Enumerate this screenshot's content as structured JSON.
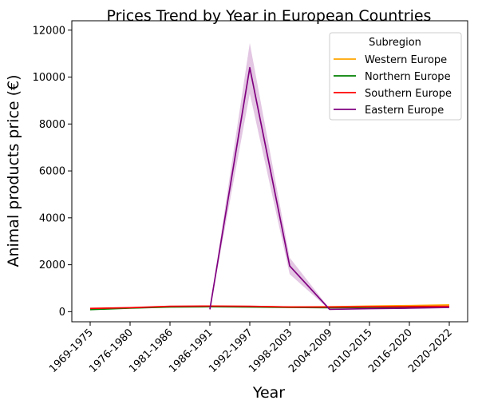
{
  "chart_data": {
    "type": "line",
    "title": "Prices Trend by Year in European Countries",
    "xlabel": "Year",
    "ylabel": "Animal products price (€)",
    "categories": [
      "1969-1975",
      "1976-1980",
      "1981-1986",
      "1986-1991",
      "1992-1997",
      "1998-2003",
      "2004-2009",
      "2010-2015",
      "2016-2020",
      "2020-2022"
    ],
    "ylim": [
      -430,
      12400
    ],
    "yticks": [
      0,
      2000,
      4000,
      6000,
      8000,
      10000,
      12000
    ],
    "grid": false,
    "legend": {
      "title": "Subregion",
      "placement": "top-right"
    },
    "series": [
      {
        "name": "Western Europe",
        "color": "#FFA500",
        "values": [
          120,
          160,
          210,
          230,
          220,
          200,
          210,
          240,
          260,
          290
        ]
      },
      {
        "name": "Northern Europe",
        "color": "#008000",
        "values": [
          90,
          150,
          200,
          210,
          200,
          180,
          170,
          180,
          190,
          210
        ]
      },
      {
        "name": "Southern Europe",
        "color": "#FF0000",
        "values": [
          140,
          170,
          230,
          240,
          230,
          200,
          200,
          210,
          220,
          230
        ]
      },
      {
        "name": "Eastern Europe",
        "color": "#800080",
        "values": [
          null,
          null,
          null,
          100,
          10400,
          1950,
          100,
          130,
          150,
          180
        ],
        "band_low": [
          null,
          null,
          null,
          80,
          9300,
          1600,
          80,
          110,
          130,
          160
        ],
        "band_high": [
          null,
          null,
          null,
          120,
          11450,
          2300,
          130,
          150,
          170,
          200
        ]
      }
    ]
  }
}
